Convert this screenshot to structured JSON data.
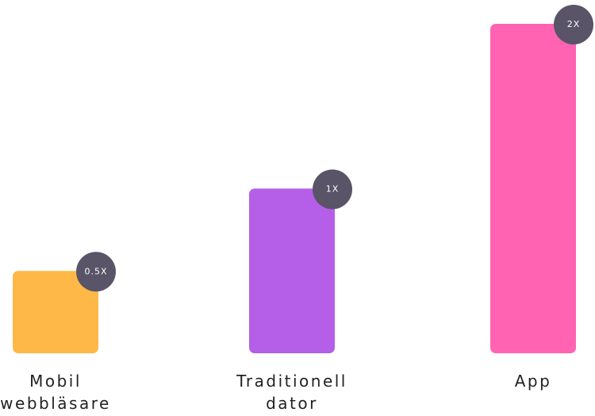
{
  "chart_data": {
    "type": "bar",
    "categories": [
      "Mobil webbläsare",
      "Traditionell dator",
      "App"
    ],
    "values": [
      0.5,
      1,
      2
    ],
    "value_labels": [
      "0.5X",
      "1X",
      "2X"
    ],
    "colors": [
      "#fdb847",
      "#b55fe8",
      "#ff63b1"
    ]
  }
}
